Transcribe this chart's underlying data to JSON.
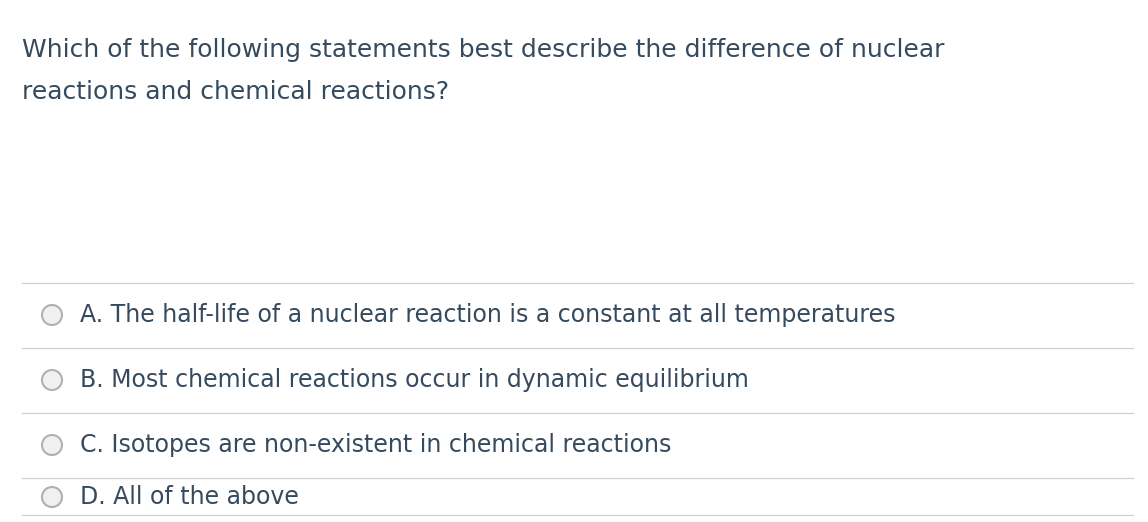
{
  "background_color": "#ffffff",
  "text_color": "#364a5e",
  "question_line1": "Which of the following statements best describe the difference of nuclear",
  "question_line2": "reactions and chemical reactions?",
  "options": [
    "A. The half-life of a nuclear reaction is a constant at all temperatures",
    "B. Most chemical reactions occur in dynamic equilibrium",
    "C. Isotopes are non-existent in chemical reactions",
    "D. All of the above"
  ],
  "question_fontsize": 18,
  "option_fontsize": 17,
  "line_color": "#d0d0d0",
  "circle_edge_color": "#b0b0b0",
  "circle_fill_color": "#f0f0f0",
  "fig_width": 11.48,
  "fig_height": 5.22,
  "dpi": 100
}
